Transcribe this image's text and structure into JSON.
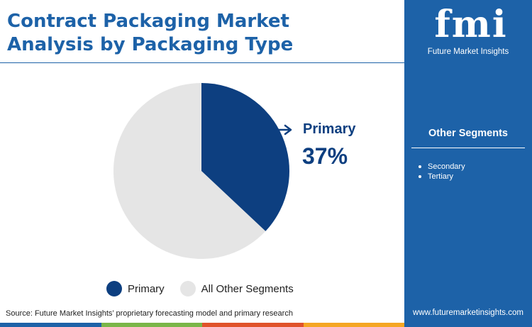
{
  "title_line1": "Contract Packaging Market",
  "title_line2": "Analysis by Packaging Type",
  "chart_data": {
    "type": "pie",
    "title": "Contract Packaging Market Analysis by Packaging Type",
    "slices": [
      {
        "name": "Primary",
        "value": 37,
        "color": "#0d3f80"
      },
      {
        "name": "All Other Segments",
        "value": 63,
        "color": "#e5e5e5"
      }
    ],
    "callout": {
      "label": "Primary",
      "value_label": "37%"
    },
    "legend": {
      "position": "bottom",
      "entries": [
        "Primary",
        "All Other Segments"
      ]
    }
  },
  "colors": {
    "accent": "#1d62a8",
    "primary_slice": "#0d3f80",
    "other_slice": "#e5e5e5",
    "bottom_rule": [
      "#1d62a8",
      "#7ab648",
      "#e0522a",
      "#f5a623"
    ]
  },
  "source": "Source: Future Market Insights’ proprietary forecasting model and primary research",
  "sidebar": {
    "logo_letters": "fmi",
    "logo_caption": "Future Market Insights",
    "heading": "Other Segments",
    "items": [
      "Secondary",
      "Tertiary"
    ],
    "website": "www.futuremarketinsights.com"
  }
}
